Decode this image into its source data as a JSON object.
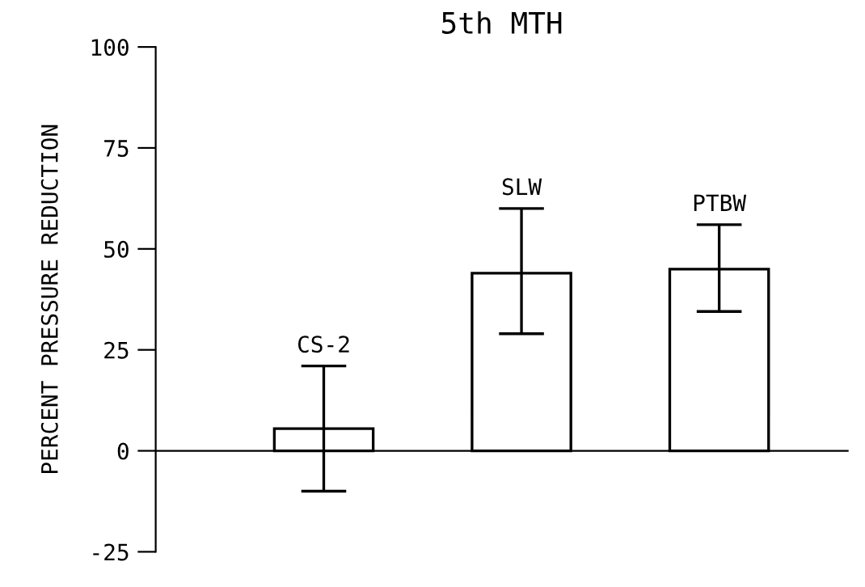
{
  "chart_data": {
    "type": "bar",
    "title": "5th MTH",
    "ylabel": "PERCENT PRESSURE REDUCTION",
    "categories": [
      "CS-2",
      "SLW",
      "PTBW"
    ],
    "values": [
      5.5,
      44,
      45
    ],
    "errors": [
      [
        -10,
        21
      ],
      [
        29,
        60
      ],
      [
        34.5,
        56
      ]
    ],
    "color": "#ffffff",
    "ylim": [
      -25,
      100
    ],
    "yticks": [
      -25,
      0,
      25,
      50,
      75,
      100
    ],
    "legend": false
  }
}
